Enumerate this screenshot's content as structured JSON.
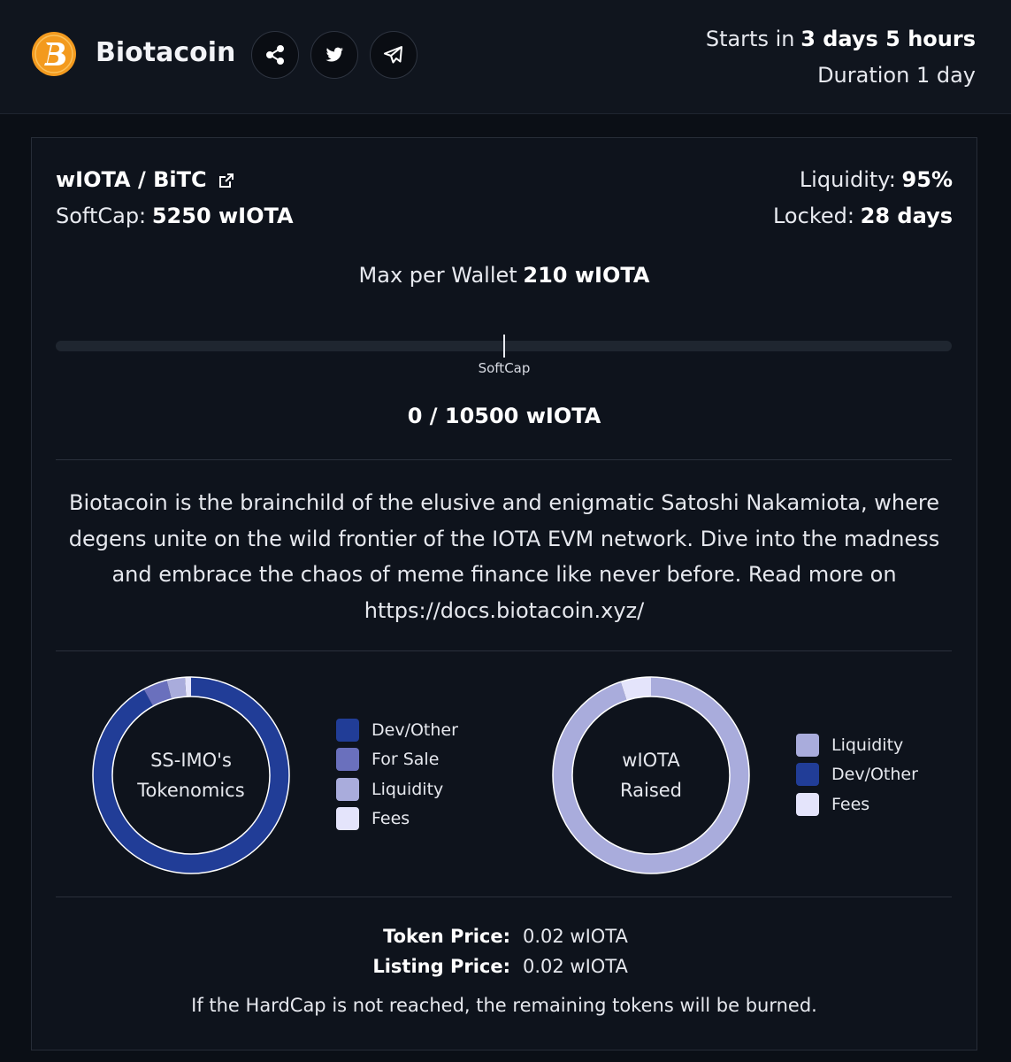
{
  "header": {
    "title": "Biotacoin",
    "starts_label": "Starts in",
    "starts_value": "3 days 5 hours",
    "duration": "Duration 1 day"
  },
  "pair": "wIOTA / BiTC",
  "softcap": {
    "label": "SoftCap:",
    "value": "5250 wIOTA"
  },
  "liquidity": {
    "label": "Liquidity:",
    "value": "95%"
  },
  "locked": {
    "label": "Locked:",
    "value": "28 days"
  },
  "max_wallet": {
    "label": "Max per Wallet",
    "value": "210 wIOTA"
  },
  "progress": {
    "marker": "SoftCap",
    "text": "0 / 10500 wIOTA"
  },
  "description": "Biotacoin is the brainchild of the elusive and enigmatic Satoshi Nakamiota, where degens unite on the wild frontier of the IOTA EVM network. Dive into the madness and embrace the chaos of meme finance like never before. Read more on https://docs.biotacoin.xyz/",
  "charts": [
    {
      "type": "donut",
      "center_label": [
        "SS-IMO's",
        "Tokenomics"
      ],
      "categories": [
        "Dev/Other",
        "For Sale",
        "Liquidity",
        "Fees"
      ],
      "values": [
        92,
        4,
        3,
        1
      ],
      "colors": [
        "#213d97",
        "#6a70bd",
        "#a9acdc",
        "#e4e4fb"
      ]
    },
    {
      "type": "donut",
      "center_label": [
        "wIOTA",
        "Raised"
      ],
      "categories": [
        "Liquidity",
        "Dev/Other",
        "Fees"
      ],
      "values": [
        95,
        0,
        5
      ],
      "colors": [
        "#a9acdc",
        "#213d97",
        "#e4e4fb"
      ]
    }
  ],
  "prices": [
    {
      "label": "Token Price:",
      "value": "0.02 wIOTA"
    },
    {
      "label": "Listing Price:",
      "value": "0.02 wIOTA"
    }
  ],
  "note": "If the HardCap is not reached, the remaining tokens will be burned."
}
